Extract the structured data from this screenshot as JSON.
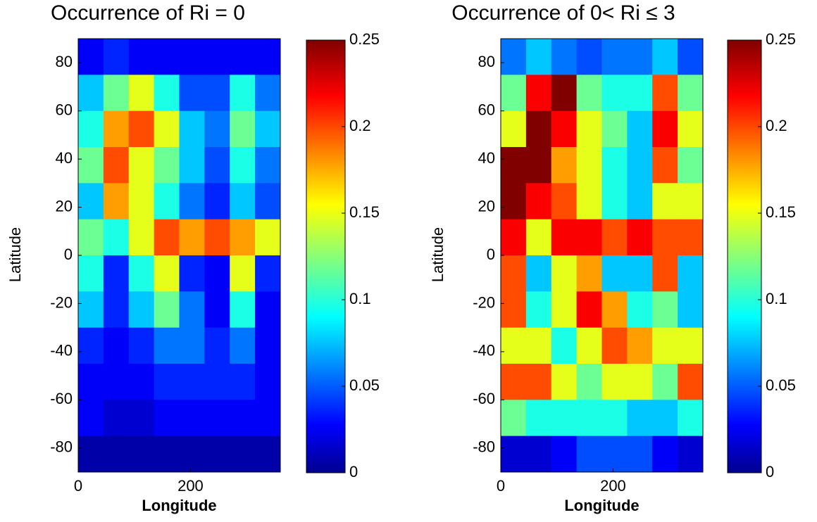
{
  "chart_data": [
    {
      "type": "heatmap",
      "title": "Occurrence of Ri = 0",
      "x_label": "Longitude",
      "y_label": "Latitude",
      "xlim": [
        0,
        360
      ],
      "xticks": [
        0,
        200
      ],
      "ylim": [
        -90,
        90
      ],
      "yticks": [
        -80,
        -60,
        -40,
        -20,
        0,
        20,
        40,
        60,
        80
      ],
      "colormap": "jet",
      "clim": [
        0,
        0.25
      ],
      "cticks": [
        0,
        0.05,
        0.1,
        0.15,
        0.2,
        0.25
      ],
      "x": [
        22.5,
        67.5,
        112.5,
        157.5,
        202.5,
        247.5,
        292.5,
        337.5
      ],
      "y": [
        82.5,
        67.5,
        52.5,
        37.5,
        22.5,
        7.5,
        -7.5,
        -22.5,
        -37.5,
        -52.5,
        -67.5,
        -82.5
      ],
      "z": [
        [
          0.03,
          0.04,
          0.03,
          0.03,
          0.03,
          0.03,
          0.03,
          0.03
        ],
        [
          0.08,
          0.12,
          0.15,
          0.1,
          0.05,
          0.05,
          0.1,
          0.06
        ],
        [
          0.1,
          0.18,
          0.2,
          0.15,
          0.08,
          0.06,
          0.12,
          0.08
        ],
        [
          0.12,
          0.2,
          0.15,
          0.12,
          0.08,
          0.05,
          0.1,
          0.06
        ],
        [
          0.08,
          0.18,
          0.15,
          0.1,
          0.06,
          0.04,
          0.08,
          0.05
        ],
        [
          0.12,
          0.1,
          0.15,
          0.2,
          0.18,
          0.2,
          0.18,
          0.15
        ],
        [
          0.1,
          0.04,
          0.1,
          0.15,
          0.04,
          0.03,
          0.15,
          0.04
        ],
        [
          0.08,
          0.04,
          0.08,
          0.12,
          0.06,
          0.03,
          0.1,
          0.03
        ],
        [
          0.04,
          0.03,
          0.04,
          0.06,
          0.06,
          0.04,
          0.06,
          0.03
        ],
        [
          0.03,
          0.03,
          0.03,
          0.04,
          0.04,
          0.04,
          0.04,
          0.03
        ],
        [
          0.03,
          0.02,
          0.02,
          0.03,
          0.03,
          0.03,
          0.03,
          0.03
        ],
        [
          0.01,
          0.01,
          0.01,
          0.01,
          0.01,
          0.01,
          0.01,
          0.01
        ]
      ]
    },
    {
      "type": "heatmap",
      "title": "Occurrence of 0< Ri ≤ 3",
      "x_label": "Longitude",
      "y_label": "Latitude",
      "xlim": [
        0,
        360
      ],
      "xticks": [
        0,
        200
      ],
      "ylim": [
        -90,
        90
      ],
      "yticks": [
        -80,
        -60,
        -40,
        -20,
        0,
        20,
        40,
        60,
        80
      ],
      "colormap": "jet",
      "clim": [
        0,
        0.25
      ],
      "cticks": [
        0,
        0.05,
        0.1,
        0.15,
        0.2,
        0.25
      ],
      "x": [
        22.5,
        67.5,
        112.5,
        157.5,
        202.5,
        247.5,
        292.5,
        337.5
      ],
      "y": [
        82.5,
        67.5,
        52.5,
        37.5,
        22.5,
        7.5,
        -7.5,
        -22.5,
        -37.5,
        -52.5,
        -67.5,
        -82.5
      ],
      "z": [
        [
          0.06,
          0.08,
          0.06,
          0.05,
          0.06,
          0.06,
          0.08,
          0.05
        ],
        [
          0.12,
          0.22,
          0.25,
          0.12,
          0.1,
          0.1,
          0.2,
          0.12
        ],
        [
          0.15,
          0.25,
          0.22,
          0.15,
          0.12,
          0.08,
          0.22,
          0.15
        ],
        [
          0.25,
          0.25,
          0.18,
          0.15,
          0.1,
          0.08,
          0.2,
          0.12
        ],
        [
          0.25,
          0.22,
          0.2,
          0.15,
          0.1,
          0.08,
          0.15,
          0.15
        ],
        [
          0.22,
          0.15,
          0.22,
          0.22,
          0.2,
          0.22,
          0.2,
          0.2
        ],
        [
          0.2,
          0.08,
          0.15,
          0.18,
          0.08,
          0.08,
          0.2,
          0.08
        ],
        [
          0.2,
          0.1,
          0.15,
          0.22,
          0.18,
          0.1,
          0.12,
          0.08
        ],
        [
          0.15,
          0.15,
          0.1,
          0.15,
          0.2,
          0.18,
          0.15,
          0.15
        ],
        [
          0.2,
          0.2,
          0.15,
          0.12,
          0.15,
          0.15,
          0.12,
          0.2
        ],
        [
          0.12,
          0.1,
          0.1,
          0.1,
          0.1,
          0.08,
          0.08,
          0.1
        ],
        [
          0.02,
          0.02,
          0.03,
          0.05,
          0.05,
          0.05,
          0.03,
          0.02
        ]
      ]
    }
  ]
}
